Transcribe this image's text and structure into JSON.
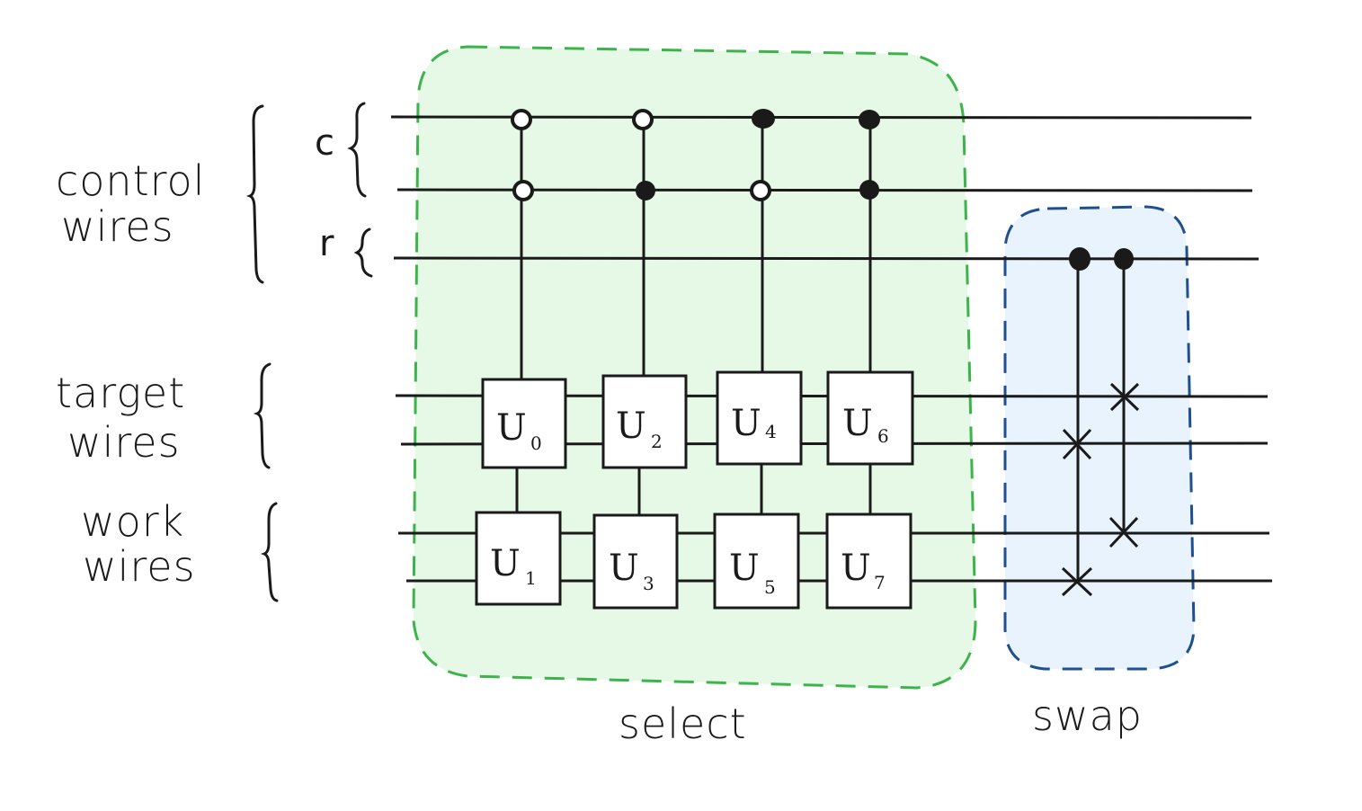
{
  "labels": {
    "control": "control",
    "control_wires": "wires",
    "target": "target",
    "target_wires": "wires",
    "work": "work",
    "work_wires": "wires",
    "reg_c": "c",
    "reg_r": "r",
    "select": "select",
    "swap": "swap"
  },
  "gates": [
    {
      "letter": "U",
      "sub": "0"
    },
    {
      "letter": "U",
      "sub": "1"
    },
    {
      "letter": "U",
      "sub": "2"
    },
    {
      "letter": "U",
      "sub": "3"
    },
    {
      "letter": "U",
      "sub": "4"
    },
    {
      "letter": "U",
      "sub": "5"
    },
    {
      "letter": "U",
      "sub": "6"
    },
    {
      "letter": "U",
      "sub": "7"
    }
  ],
  "colors": {
    "select_fill": "#e6f9e6",
    "select_border": "#3cb44b",
    "swap_fill": "#e8f3fd",
    "swap_border": "#1f4f8f",
    "ink": "#1a1a1a"
  }
}
